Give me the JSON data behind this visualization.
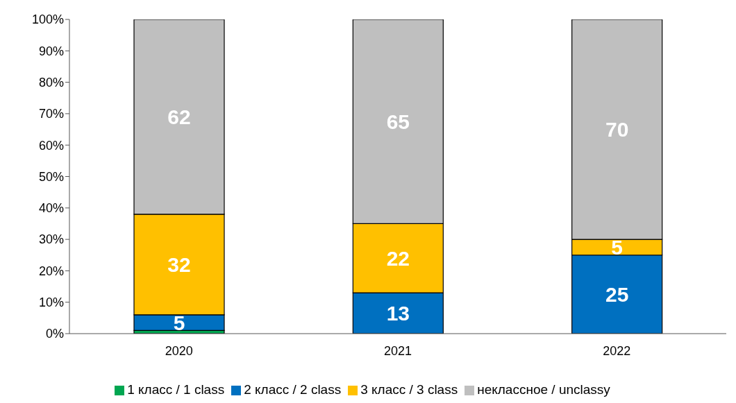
{
  "chart_data": {
    "type": "bar",
    "stacked": true,
    "categories": [
      "2020",
      "2021",
      "2022"
    ],
    "series": [
      {
        "name": "1 класс / 1 class",
        "color": "#00a651",
        "values": [
          1,
          0,
          0
        ],
        "value_labels": [
          null,
          null,
          null
        ]
      },
      {
        "name": "2 класс / 2 class",
        "color": "#0070c0",
        "values": [
          5,
          13,
          25
        ],
        "value_labels": [
          "5",
          "13",
          "25"
        ]
      },
      {
        "name": "3 класс / 3 class",
        "color": "#ffc000",
        "values": [
          32,
          22,
          5
        ],
        "value_labels": [
          "32",
          "22",
          "5"
        ]
      },
      {
        "name": "неклассное / unclassy",
        "color": "#bfbfbf",
        "values": [
          62,
          65,
          70
        ],
        "value_labels": [
          "62",
          "65",
          "70"
        ]
      }
    ],
    "ylim": [
      0,
      100
    ],
    "yticks": [
      {
        "value": 0,
        "label": "0%"
      },
      {
        "value": 10,
        "label": "10%"
      },
      {
        "value": 20,
        "label": "20%"
      },
      {
        "value": 30,
        "label": "30%"
      },
      {
        "value": 40,
        "label": "40%"
      },
      {
        "value": 50,
        "label": "50%"
      },
      {
        "value": 60,
        "label": "60%"
      },
      {
        "value": 70,
        "label": "70%"
      },
      {
        "value": 80,
        "label": "80%"
      },
      {
        "value": 90,
        "label": "90%"
      },
      {
        "value": 100,
        "label": "100%"
      }
    ],
    "grid": false,
    "legend": "bottom"
  }
}
